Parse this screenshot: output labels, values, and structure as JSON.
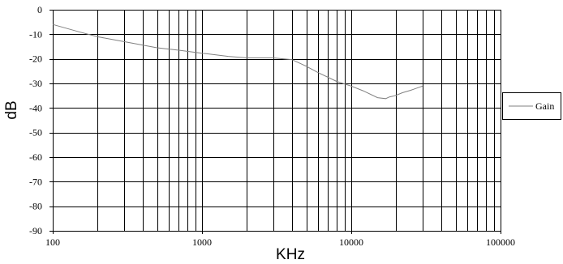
{
  "chart_data": {
    "type": "line",
    "title": "",
    "xlabel": "KHz",
    "ylabel": "dB",
    "xscale": "log",
    "xlim": [
      100,
      100000
    ],
    "ylim": [
      -90,
      0
    ],
    "xticks": [
      100,
      1000,
      10000,
      100000
    ],
    "xtick_labels": [
      "100",
      "1000",
      "10000",
      "100000"
    ],
    "yticks": [
      0,
      -10,
      -20,
      -30,
      -40,
      -50,
      -60,
      -70,
      -80,
      -90
    ],
    "ytick_labels": [
      "0",
      "-10",
      "-20",
      "-30",
      "-40",
      "-50",
      "-60",
      "-70",
      "-80",
      "-90"
    ],
    "grid": true,
    "legend_position": "right",
    "colors": {
      "line": "#808080",
      "grid": "#000000",
      "background": "#ffffff"
    },
    "series": [
      {
        "name": "Gain",
        "x": [
          100,
          150,
          200,
          300,
          500,
          700,
          1000,
          1500,
          2000,
          3000,
          4000,
          5000,
          6000,
          8000,
          10000,
          12000,
          15000,
          17000,
          18000,
          19000,
          20000,
          22000,
          25000,
          30000
        ],
        "y": [
          -6,
          -9,
          -11,
          -13,
          -15.5,
          -16.5,
          -17.7,
          -19,
          -19.6,
          -19.6,
          -20.3,
          -23,
          -25.6,
          -29.2,
          -31.1,
          -33,
          -35.8,
          -36.2,
          -35.5,
          -35.2,
          -34.8,
          -33.8,
          -32.8,
          -31.1
        ]
      }
    ]
  }
}
